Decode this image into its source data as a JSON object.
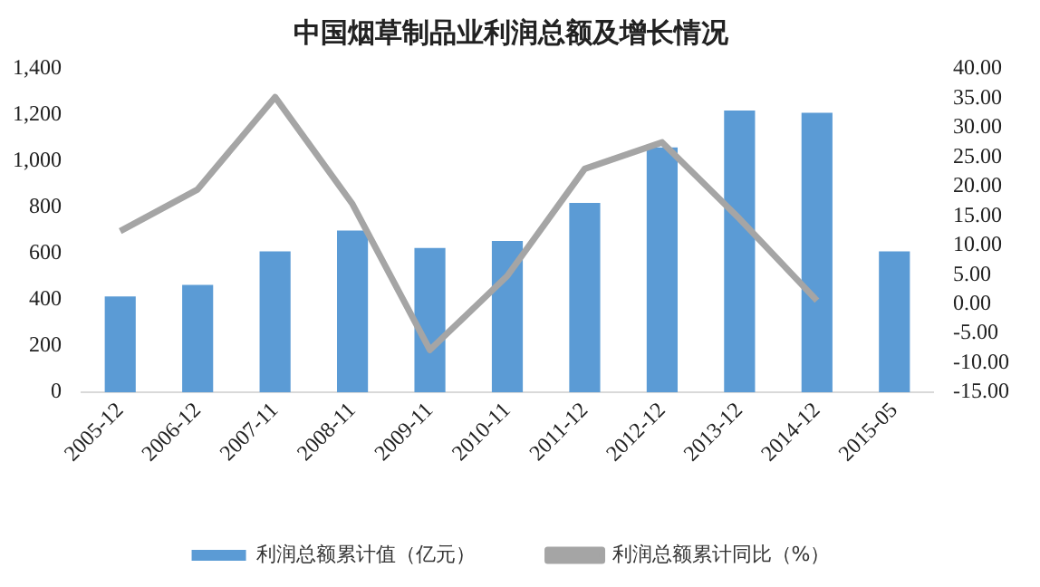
{
  "chart_data": {
    "type": "bar",
    "title": "中国烟草制品业利润总额及增长情况",
    "categories": [
      "2005-12",
      "2006-12",
      "2007-11",
      "2008-11",
      "2009-11",
      "2010-11",
      "2011-12",
      "2012-12",
      "2013-12",
      "2014-12",
      "2015-05"
    ],
    "series": [
      {
        "name": "利润总额累计值（亿元）",
        "color": "#5b9bd5",
        "values": [
          415,
          465,
          610,
          700,
          625,
          655,
          820,
          1060,
          1220,
          1210,
          610
        ]
      },
      {
        "name": "利润总额累计同比（%）",
        "color": "#a5a5a5",
        "type": "line",
        "axis": "y2",
        "values": [
          12.4,
          19.5,
          35.2,
          17,
          -7.8,
          4.8,
          23,
          27.5,
          14.5,
          0.6,
          null
        ]
      }
    ],
    "ylim": [
      0,
      1400
    ],
    "yticks": [
      {
        "value": 0,
        "label": "0"
      },
      {
        "value": 200,
        "label": "200"
      },
      {
        "value": 400,
        "label": "400"
      },
      {
        "value": 600,
        "label": "600"
      },
      {
        "value": 800,
        "label": "800"
      },
      {
        "value": 1000,
        "label": "1,000"
      },
      {
        "value": 1200,
        "label": "1,200"
      },
      {
        "value": 1400,
        "label": "1,400"
      }
    ],
    "y2lim": [
      -15,
      40
    ],
    "y2ticks": [
      {
        "value": -15,
        "label": "-15.00"
      },
      {
        "value": -10,
        "label": "-10.00"
      },
      {
        "value": -5,
        "label": "-5.00"
      },
      {
        "value": 0,
        "label": "0.00"
      },
      {
        "value": 5,
        "label": "5.00"
      },
      {
        "value": 10,
        "label": "10.00"
      },
      {
        "value": 15,
        "label": "15.00"
      },
      {
        "value": 20,
        "label": "20.00"
      },
      {
        "value": 25,
        "label": "25.00"
      },
      {
        "value": 30,
        "label": "30.00"
      },
      {
        "value": 35,
        "label": "35.00"
      },
      {
        "value": 40,
        "label": "40.00"
      }
    ],
    "grid": false,
    "legend": "bottom",
    "marker": "none"
  }
}
